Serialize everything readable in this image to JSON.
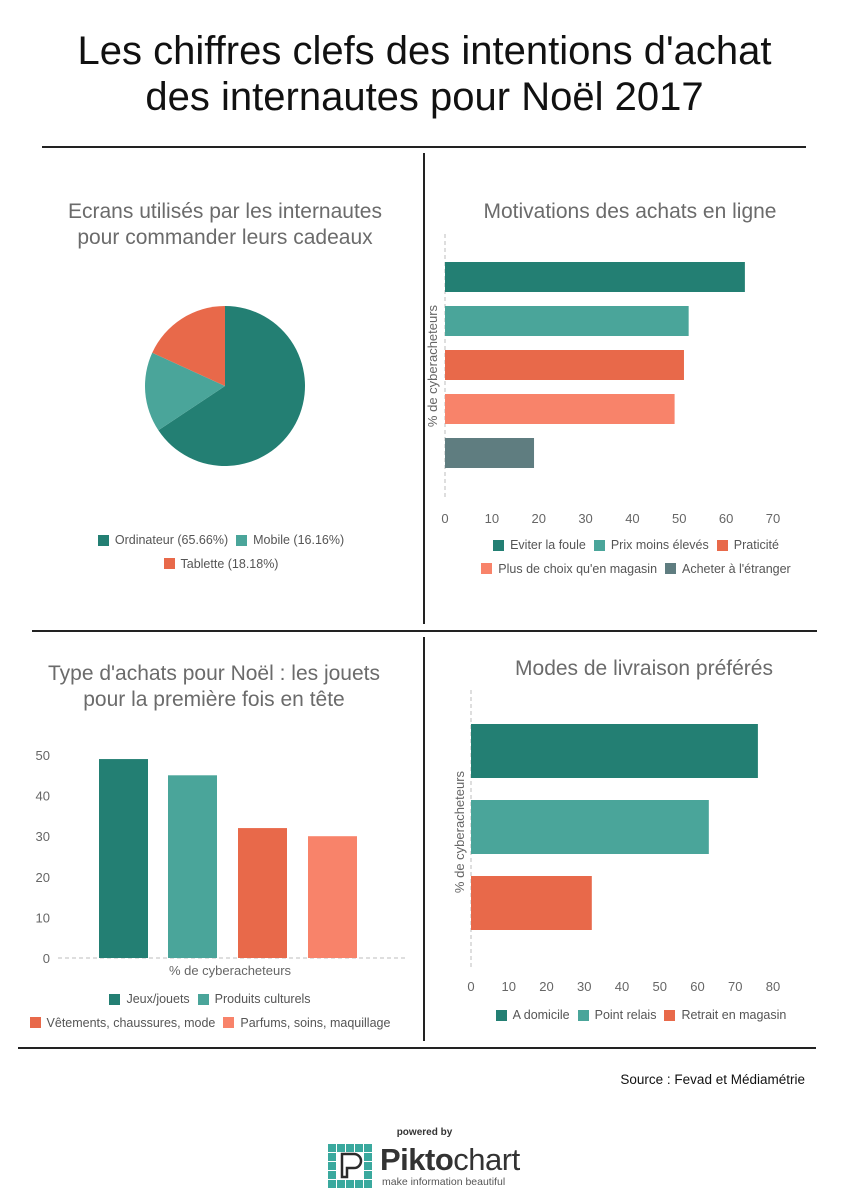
{
  "title_line1": "Les chiffres clefs des intentions d'achat",
  "title_line2": "des internautes pour Noël 2017",
  "source": "Source : Fevad et Médiamétrie",
  "powered_by": "powered by",
  "brand": {
    "name_a": "Pikto",
    "name_b": "chart",
    "tagline": "make information beautiful"
  },
  "colors": {
    "teal_dark": "#237f73",
    "teal": "#4aa59a",
    "orange": "#e8694a",
    "salmon": "#f8836a",
    "slate": "#5f7d80"
  },
  "chart_data": [
    {
      "type": "pie",
      "title_line1": "Ecrans utilisés par les internautes",
      "title_line2": "pour commander leurs cadeaux",
      "slices": [
        {
          "label": "Ordinateur (65.66%)",
          "value": 65.66,
          "color": "#237f73"
        },
        {
          "label": "Mobile (16.16%)",
          "value": 16.16,
          "color": "#4aa59a"
        },
        {
          "label": "Tablette (18.18%)",
          "value": 18.18,
          "color": "#e8694a"
        }
      ]
    },
    {
      "type": "bar",
      "orientation": "horizontal",
      "title": "Motivations des achats en ligne",
      "ylabel": "% de cyberacheteurs",
      "xlim": [
        0,
        70
      ],
      "ticks": [
        "0",
        "10",
        "20",
        "30",
        "40",
        "50",
        "60",
        "70"
      ],
      "series": [
        {
          "name": "Eviter la foule",
          "value": 64,
          "color": "#237f73"
        },
        {
          "name": "Prix moins élevés",
          "value": 52,
          "color": "#4aa59a"
        },
        {
          "name": "Praticité",
          "value": 51,
          "color": "#e8694a"
        },
        {
          "name": "Plus de choix qu'en magasin",
          "value": 49,
          "color": "#f8836a"
        },
        {
          "name": "Acheter à l'étranger",
          "value": 19,
          "color": "#5f7d80"
        }
      ]
    },
    {
      "type": "bar",
      "orientation": "vertical",
      "title_line1": "Type d'achats pour Noël : les jouets",
      "title_line2": "pour la première fois en tête",
      "xlabel": "% de cyberacheteurs",
      "ylim": [
        0,
        50
      ],
      "ticks": [
        "0",
        "10",
        "20",
        "30",
        "40",
        "50"
      ],
      "series": [
        {
          "name": "Jeux/jouets",
          "value": 49,
          "color": "#237f73"
        },
        {
          "name": "Produits culturels",
          "value": 45,
          "color": "#4aa59a"
        },
        {
          "name": "Vêtements, chaussures, mode",
          "value": 32,
          "color": "#e8694a"
        },
        {
          "name": "Parfums, soins, maquillage",
          "value": 30,
          "color": "#f8836a"
        }
      ]
    },
    {
      "type": "bar",
      "orientation": "horizontal",
      "title": "Modes de livraison préférés",
      "ylabel": "% de cyberacheteurs",
      "xlim": [
        0,
        80
      ],
      "ticks": [
        "0",
        "10",
        "20",
        "30",
        "40",
        "50",
        "60",
        "70",
        "80"
      ],
      "series": [
        {
          "name": "A domicile",
          "value": 76,
          "color": "#237f73"
        },
        {
          "name": "Point relais",
          "value": 63,
          "color": "#4aa59a"
        },
        {
          "name": "Retrait en magasin",
          "value": 32,
          "color": "#e8694a"
        }
      ]
    }
  ]
}
